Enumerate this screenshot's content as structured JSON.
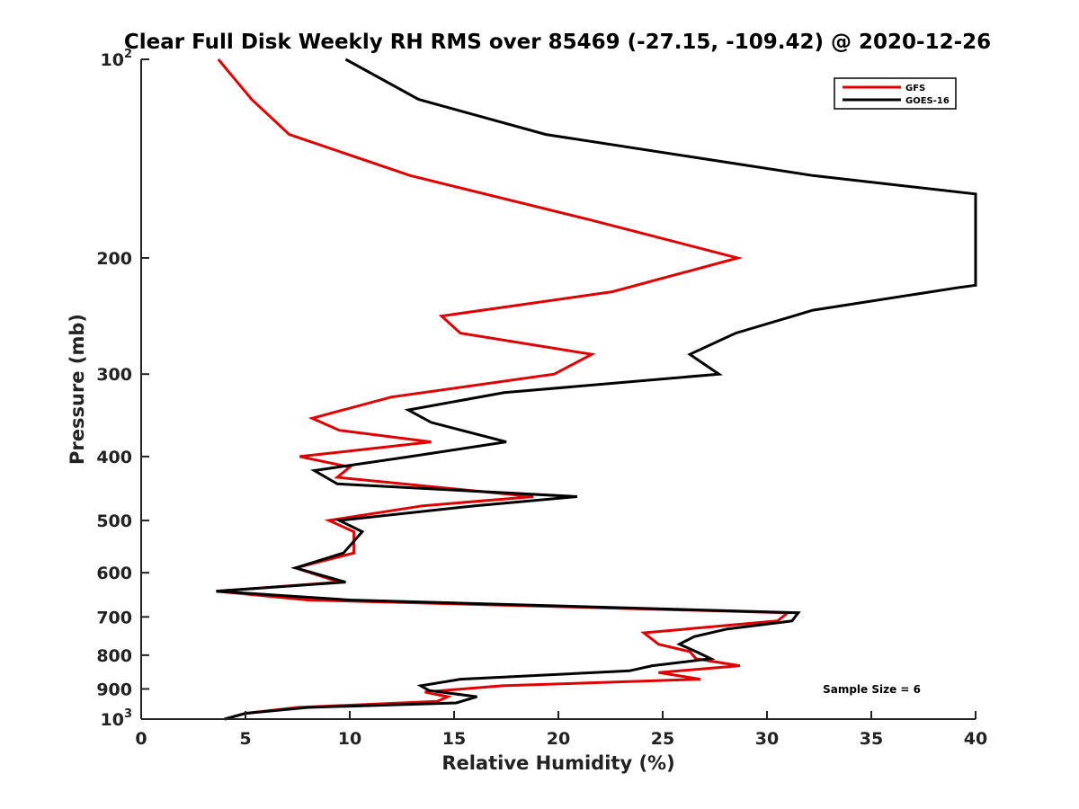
{
  "chart_data": {
    "type": "line",
    "title": "Clear Full Disk Weekly RH RMS over 85469 (-27.15, -109.42) @ 2020-12-26",
    "xlabel": "Relative Humidity (%)",
    "ylabel": "Pressure (mb)",
    "xlim": [
      0,
      40
    ],
    "ylim": [
      100,
      1000
    ],
    "y_scale": "log",
    "y_reversed": true,
    "x_ticks": [
      0,
      5,
      10,
      15,
      20,
      25,
      30,
      35,
      40
    ],
    "x_tick_labels": [
      "0",
      "5",
      "10",
      "15",
      "20",
      "25",
      "30",
      "35",
      "40"
    ],
    "y_ticks": [
      100,
      200,
      300,
      400,
      500,
      600,
      700,
      800,
      900,
      1000
    ],
    "y_tick_labels": [
      {
        "base": "10",
        "exp": "2"
      },
      {
        "base": "200"
      },
      {
        "base": "300"
      },
      {
        "base": "400"
      },
      {
        "base": "500"
      },
      {
        "base": "600"
      },
      {
        "base": "700"
      },
      {
        "base": "800"
      },
      {
        "base": "900"
      },
      {
        "base": "10",
        "exp": "3"
      }
    ],
    "grid": false,
    "legend_position": "top-right",
    "series": [
      {
        "name": "GFS",
        "color": "#e00000",
        "points": [
          [
            3.7,
            100
          ],
          [
            5.3,
            115
          ],
          [
            7.1,
            130
          ],
          [
            12.9,
            150
          ],
          [
            21.5,
            175
          ],
          [
            28.6,
            200
          ],
          [
            22.6,
            225
          ],
          [
            14.4,
            245
          ],
          [
            15.3,
            260
          ],
          [
            21.6,
            280
          ],
          [
            19.8,
            300
          ],
          [
            12.0,
            325
          ],
          [
            8.2,
            350
          ],
          [
            9.5,
            365
          ],
          [
            13.9,
            380
          ],
          [
            7.6,
            400
          ],
          [
            10.0,
            415
          ],
          [
            9.4,
            430
          ],
          [
            18.8,
            460
          ],
          [
            13.5,
            475
          ],
          [
            9.0,
            500
          ],
          [
            10.2,
            520
          ],
          [
            10.2,
            560
          ],
          [
            7.4,
            590
          ],
          [
            9.5,
            620
          ],
          [
            3.6,
            640
          ],
          [
            8.0,
            660
          ],
          [
            31.0,
            690
          ],
          [
            30.5,
            710
          ],
          [
            24.1,
            740
          ],
          [
            24.8,
            770
          ],
          [
            26.3,
            790
          ],
          [
            26.6,
            810
          ],
          [
            28.7,
            830
          ],
          [
            24.8,
            850
          ],
          [
            26.8,
            870
          ],
          [
            17.3,
            890
          ],
          [
            13.6,
            910
          ],
          [
            14.7,
            925
          ],
          [
            14.2,
            940
          ],
          [
            7.5,
            960
          ],
          [
            5.0,
            980
          ],
          [
            4.0,
            1000
          ]
        ]
      },
      {
        "name": "GOES-16",
        "color": "#000000",
        "points": [
          [
            9.8,
            100
          ],
          [
            13.3,
            115
          ],
          [
            19.4,
            130
          ],
          [
            32.2,
            150
          ],
          [
            40.0,
            160
          ],
          [
            40.0,
            220
          ],
          [
            39.1,
            222
          ],
          [
            32.2,
            240
          ],
          [
            28.5,
            260
          ],
          [
            26.3,
            280
          ],
          [
            27.7,
            300
          ],
          [
            17.4,
            320
          ],
          [
            12.8,
            340
          ],
          [
            13.9,
            355
          ],
          [
            17.5,
            380
          ],
          [
            12.9,
            400
          ],
          [
            8.3,
            420
          ],
          [
            9.4,
            440
          ],
          [
            20.9,
            460
          ],
          [
            16.0,
            475
          ],
          [
            9.5,
            500
          ],
          [
            10.6,
            520
          ],
          [
            9.7,
            560
          ],
          [
            7.4,
            590
          ],
          [
            9.8,
            620
          ],
          [
            3.6,
            640
          ],
          [
            10.0,
            660
          ],
          [
            31.5,
            690
          ],
          [
            31.2,
            710
          ],
          [
            28.1,
            730
          ],
          [
            26.5,
            750
          ],
          [
            25.8,
            770
          ],
          [
            26.6,
            790
          ],
          [
            27.3,
            810
          ],
          [
            24.5,
            830
          ],
          [
            23.4,
            845
          ],
          [
            15.3,
            870
          ],
          [
            13.4,
            890
          ],
          [
            13.8,
            905
          ],
          [
            16.1,
            925
          ],
          [
            15.1,
            945
          ],
          [
            8.0,
            960
          ],
          [
            5.0,
            980
          ],
          [
            4.0,
            1000
          ]
        ]
      }
    ],
    "annotations": [
      {
        "text": "Sample Size = 6"
      }
    ]
  }
}
